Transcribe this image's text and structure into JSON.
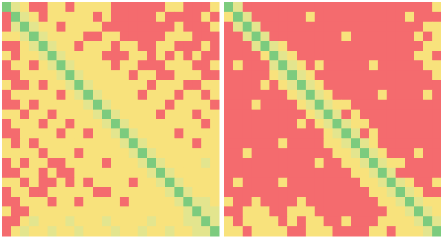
{
  "chart_data": [
    {
      "type": "heatmap",
      "colors": [
        "#f46b6e",
        "#f8e27c",
        "#e3e58e",
        "#7ccb7e"
      ],
      "values": [
        [
          3,
          2,
          1,
          0,
          0,
          1,
          1,
          0,
          1,
          1,
          1,
          1,
          0,
          0,
          0,
          0,
          0,
          0,
          1,
          1,
          0,
          0,
          0,
          1
        ],
        [
          0,
          3,
          2,
          1,
          0,
          1,
          1,
          1,
          1,
          1,
          0,
          1,
          0,
          0,
          0,
          0,
          0,
          1,
          0,
          0,
          0,
          0,
          1,
          0
        ],
        [
          0,
          2,
          3,
          2,
          1,
          1,
          0,
          1,
          1,
          1,
          1,
          0,
          0,
          0,
          0,
          0,
          0,
          0,
          0,
          1,
          0,
          0,
          0,
          1
        ],
        [
          1,
          1,
          2,
          3,
          2,
          1,
          1,
          1,
          1,
          0,
          0,
          1,
          1,
          0,
          0,
          0,
          0,
          0,
          1,
          1,
          1,
          0,
          0,
          0
        ],
        [
          0,
          0,
          1,
          2,
          3,
          2,
          1,
          1,
          0,
          1,
          1,
          1,
          0,
          1,
          1,
          0,
          0,
          1,
          1,
          0,
          0,
          0,
          1,
          0
        ],
        [
          1,
          0,
          1,
          1,
          2,
          3,
          2,
          1,
          1,
          1,
          1,
          0,
          0,
          0,
          1,
          1,
          0,
          1,
          0,
          1,
          0,
          1,
          0,
          0
        ],
        [
          0,
          1,
          1,
          0,
          1,
          2,
          3,
          2,
          1,
          1,
          1,
          1,
          0,
          1,
          1,
          0,
          0,
          0,
          1,
          1,
          1,
          0,
          0,
          1
        ],
        [
          0,
          0,
          1,
          1,
          1,
          1,
          2,
          3,
          2,
          1,
          1,
          1,
          1,
          1,
          0,
          1,
          1,
          0,
          0,
          1,
          1,
          1,
          0,
          0
        ],
        [
          1,
          0,
          0,
          1,
          0,
          1,
          1,
          2,
          3,
          2,
          1,
          1,
          1,
          1,
          1,
          1,
          0,
          1,
          1,
          1,
          0,
          0,
          1,
          1
        ],
        [
          0,
          1,
          1,
          1,
          1,
          1,
          0,
          1,
          2,
          3,
          2,
          1,
          1,
          1,
          1,
          0,
          1,
          1,
          1,
          0,
          1,
          1,
          0,
          1
        ],
        [
          0,
          0,
          1,
          0,
          1,
          1,
          1,
          1,
          1,
          2,
          3,
          2,
          1,
          1,
          1,
          1,
          1,
          1,
          0,
          1,
          1,
          1,
          1,
          0
        ],
        [
          1,
          1,
          0,
          1,
          1,
          0,
          1,
          1,
          1,
          1,
          2,
          3,
          2,
          1,
          1,
          1,
          1,
          0,
          1,
          1,
          1,
          0,
          1,
          1
        ],
        [
          0,
          1,
          1,
          1,
          0,
          1,
          1,
          0,
          1,
          1,
          1,
          2,
          3,
          2,
          1,
          1,
          1,
          1,
          1,
          1,
          1,
          1,
          0,
          1
        ],
        [
          0,
          0,
          1,
          1,
          1,
          1,
          0,
          1,
          1,
          0,
          1,
          1,
          2,
          3,
          2,
          1,
          1,
          1,
          1,
          0,
          1,
          1,
          1,
          1
        ],
        [
          1,
          0,
          1,
          0,
          1,
          1,
          1,
          1,
          1,
          1,
          1,
          1,
          1,
          2,
          3,
          2,
          1,
          1,
          1,
          1,
          1,
          0,
          1,
          1
        ],
        [
          1,
          1,
          1,
          1,
          0,
          1,
          1,
          1,
          0,
          1,
          1,
          1,
          1,
          1,
          2,
          3,
          2,
          1,
          1,
          1,
          1,
          1,
          1,
          1
        ],
        [
          0,
          1,
          0,
          1,
          1,
          0,
          0,
          1,
          1,
          1,
          1,
          0,
          1,
          1,
          1,
          2,
          3,
          2,
          1,
          1,
          1,
          1,
          2,
          1
        ],
        [
          0,
          0,
          1,
          1,
          0,
          1,
          0,
          0,
          1,
          1,
          1,
          1,
          1,
          1,
          1,
          1,
          2,
          3,
          2,
          1,
          1,
          1,
          1,
          1
        ],
        [
          1,
          1,
          0,
          1,
          0,
          0,
          1,
          0,
          1,
          0,
          1,
          1,
          1,
          1,
          0,
          1,
          1,
          2,
          3,
          2,
          1,
          1,
          1,
          1
        ],
        [
          0,
          1,
          1,
          0,
          0,
          1,
          1,
          1,
          1,
          1,
          0,
          0,
          1,
          1,
          1,
          1,
          1,
          1,
          2,
          3,
          2,
          1,
          1,
          1
        ],
        [
          0,
          0,
          1,
          1,
          1,
          0,
          1,
          1,
          0,
          1,
          1,
          1,
          1,
          0,
          1,
          1,
          1,
          1,
          1,
          2,
          3,
          2,
          2,
          1
        ],
        [
          1,
          0,
          0,
          1,
          1,
          1,
          1,
          1,
          1,
          1,
          1,
          1,
          1,
          1,
          1,
          1,
          1,
          1,
          1,
          1,
          2,
          3,
          2,
          2
        ],
        [
          0,
          0,
          1,
          2,
          1,
          1,
          1,
          2,
          1,
          1,
          1,
          2,
          1,
          1,
          1,
          1,
          2,
          1,
          1,
          1,
          2,
          2,
          3,
          2
        ],
        [
          0,
          1,
          2,
          1,
          1,
          2,
          1,
          1,
          2,
          1,
          1,
          1,
          2,
          1,
          1,
          2,
          1,
          1,
          2,
          1,
          1,
          2,
          2,
          3
        ]
      ]
    },
    {
      "type": "heatmap",
      "colors": [
        "#f46b6e",
        "#f8e27c",
        "#e3e58e",
        "#7ccb7e"
      ],
      "values": [
        [
          3,
          2,
          0,
          0,
          0,
          0,
          0,
          0,
          0,
          0,
          0,
          0,
          0,
          0,
          0,
          0,
          0,
          0,
          0,
          0,
          0,
          0,
          0,
          1
        ],
        [
          1,
          3,
          2,
          0,
          0,
          0,
          0,
          0,
          0,
          1,
          0,
          0,
          0,
          0,
          0,
          0,
          0,
          0,
          0,
          0,
          1,
          0,
          0,
          0
        ],
        [
          0,
          2,
          3,
          2,
          0,
          0,
          0,
          0,
          0,
          0,
          0,
          0,
          0,
          0,
          0,
          0,
          0,
          0,
          0,
          0,
          0,
          0,
          1,
          1
        ],
        [
          0,
          0,
          2,
          3,
          2,
          0,
          0,
          0,
          0,
          0,
          0,
          0,
          0,
          1,
          0,
          0,
          0,
          0,
          0,
          0,
          0,
          1,
          0,
          1
        ],
        [
          0,
          0,
          0,
          2,
          3,
          2,
          1,
          0,
          0,
          0,
          0,
          0,
          0,
          0,
          0,
          0,
          0,
          0,
          0,
          0,
          0,
          0,
          1,
          1
        ],
        [
          0,
          0,
          0,
          0,
          1,
          3,
          2,
          1,
          0,
          0,
          0,
          0,
          0,
          0,
          0,
          0,
          0,
          0,
          0,
          0,
          0,
          1,
          1,
          0
        ],
        [
          0,
          1,
          0,
          0,
          0,
          2,
          3,
          2,
          1,
          0,
          1,
          0,
          0,
          0,
          0,
          0,
          1,
          0,
          0,
          0,
          0,
          0,
          1,
          1
        ],
        [
          0,
          0,
          0,
          0,
          0,
          1,
          2,
          3,
          2,
          1,
          0,
          0,
          0,
          0,
          0,
          0,
          0,
          0,
          0,
          0,
          0,
          0,
          0,
          1
        ],
        [
          0,
          0,
          0,
          0,
          1,
          0,
          1,
          2,
          3,
          2,
          1,
          0,
          0,
          0,
          0,
          0,
          0,
          0,
          0,
          0,
          0,
          0,
          0,
          0
        ],
        [
          0,
          0,
          0,
          0,
          0,
          0,
          0,
          1,
          2,
          3,
          2,
          1,
          0,
          0,
          0,
          0,
          0,
          1,
          0,
          0,
          0,
          0,
          1,
          0
        ],
        [
          0,
          0,
          0,
          1,
          0,
          0,
          0,
          0,
          1,
          2,
          3,
          2,
          1,
          1,
          0,
          0,
          0,
          0,
          0,
          0,
          0,
          0,
          0,
          0
        ],
        [
          0,
          0,
          0,
          0,
          0,
          0,
          0,
          0,
          0,
          1,
          2,
          3,
          2,
          0,
          1,
          0,
          0,
          0,
          0,
          0,
          0,
          0,
          0,
          0
        ],
        [
          0,
          0,
          0,
          0,
          0,
          0,
          0,
          0,
          1,
          0,
          1,
          2,
          3,
          2,
          1,
          1,
          0,
          0,
          0,
          0,
          0,
          0,
          0,
          0
        ],
        [
          0,
          0,
          0,
          0,
          0,
          0,
          0,
          0,
          0,
          0,
          0,
          1,
          2,
          3,
          2,
          0,
          1,
          0,
          0,
          0,
          0,
          0,
          0,
          0
        ],
        [
          0,
          0,
          0,
          0,
          0,
          0,
          1,
          0,
          0,
          0,
          0,
          1,
          1,
          2,
          3,
          2,
          1,
          0,
          0,
          0,
          0,
          0,
          0,
          0
        ],
        [
          0,
          0,
          1,
          0,
          0,
          0,
          0,
          0,
          0,
          0,
          0,
          0,
          1,
          1,
          2,
          3,
          2,
          1,
          0,
          0,
          0,
          1,
          0,
          0
        ],
        [
          0,
          0,
          0,
          0,
          0,
          0,
          0,
          0,
          0,
          0,
          1,
          0,
          0,
          1,
          1,
          2,
          3,
          2,
          1,
          1,
          0,
          0,
          0,
          0
        ],
        [
          0,
          0,
          0,
          0,
          0,
          0,
          0,
          0,
          0,
          0,
          0,
          0,
          0,
          0,
          1,
          1,
          2,
          3,
          2,
          0,
          0,
          0,
          0,
          0
        ],
        [
          0,
          1,
          0,
          0,
          0,
          0,
          1,
          0,
          0,
          0,
          0,
          0,
          0,
          0,
          0,
          1,
          1,
          2,
          3,
          2,
          1,
          0,
          0,
          1
        ],
        [
          0,
          0,
          0,
          0,
          0,
          0,
          0,
          0,
          0,
          0,
          0,
          0,
          0,
          0,
          0,
          0,
          1,
          1,
          2,
          3,
          2,
          1,
          0,
          0
        ],
        [
          1,
          0,
          0,
          1,
          0,
          0,
          0,
          0,
          1,
          0,
          0,
          0,
          0,
          0,
          0,
          0,
          0,
          1,
          1,
          2,
          3,
          2,
          1,
          1
        ],
        [
          0,
          0,
          1,
          1,
          1,
          0,
          0,
          1,
          1,
          1,
          0,
          0,
          0,
          0,
          0,
          0,
          0,
          0,
          1,
          1,
          2,
          3,
          2,
          1
        ],
        [
          1,
          0,
          1,
          1,
          1,
          1,
          0,
          1,
          0,
          1,
          1,
          0,
          0,
          1,
          0,
          0,
          0,
          1,
          1,
          1,
          1,
          2,
          3,
          2
        ],
        [
          1,
          1,
          0,
          1,
          1,
          1,
          1,
          0,
          0,
          1,
          1,
          1,
          0,
          0,
          0,
          0,
          1,
          1,
          0,
          1,
          1,
          1,
          2,
          3
        ]
      ]
    }
  ]
}
